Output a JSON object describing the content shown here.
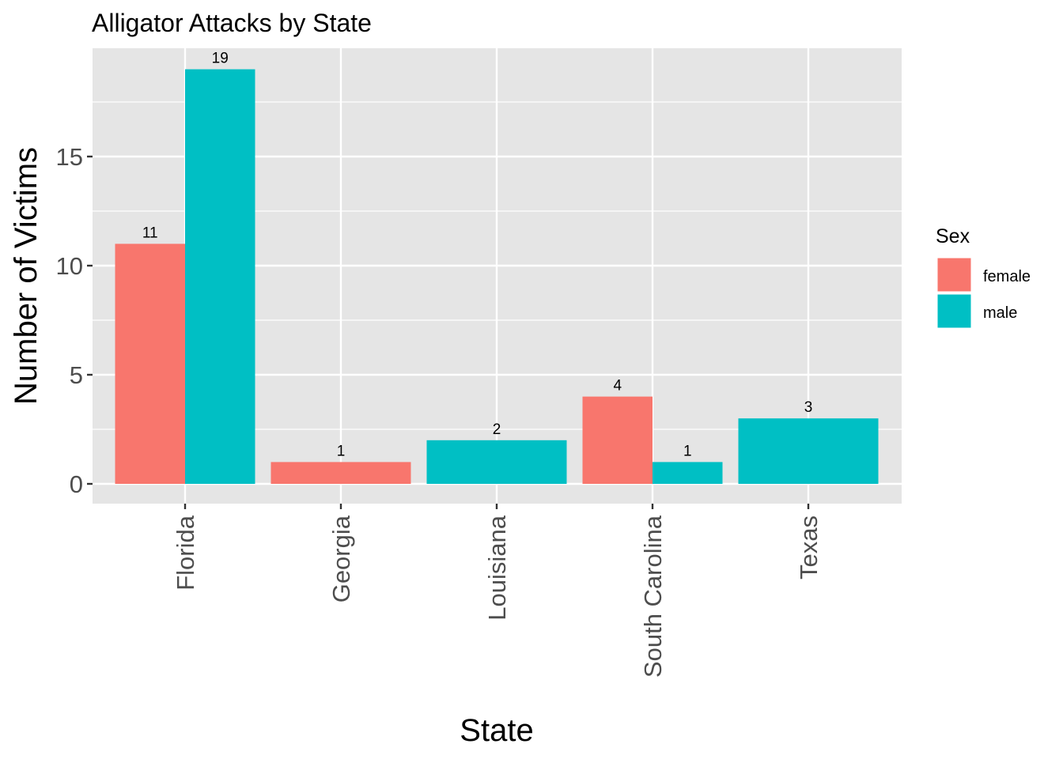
{
  "chart_data": {
    "type": "bar",
    "title": "Alligator Attacks by State",
    "xlabel": "State",
    "ylabel": "Number of Victims",
    "categories": [
      "Florida",
      "Georgia",
      "Louisiana",
      "South Carolina",
      "Texas"
    ],
    "series": [
      {
        "name": "female",
        "color": "#F8766D",
        "values": [
          11,
          1,
          0,
          4,
          0
        ]
      },
      {
        "name": "male",
        "color": "#00BFC4",
        "values": [
          19,
          0,
          2,
          1,
          3
        ]
      }
    ],
    "bars": [
      {
        "category": "Florida",
        "sex": "female",
        "value": 11
      },
      {
        "category": "Florida",
        "sex": "male",
        "value": 19
      },
      {
        "category": "Georgia",
        "sex": "female",
        "value": 1
      },
      {
        "category": "Louisiana",
        "sex": "male",
        "value": 2
      },
      {
        "category": "South Carolina",
        "sex": "female",
        "value": 4
      },
      {
        "category": "South Carolina",
        "sex": "male",
        "value": 1
      },
      {
        "category": "Texas",
        "sex": "male",
        "value": 3
      }
    ],
    "yticks": [
      0,
      5,
      10,
      15
    ],
    "ylim": [
      -0.9,
      19.9
    ],
    "grid": true,
    "legend": {
      "title": "Sex",
      "position": "right",
      "items": [
        "female",
        "male"
      ]
    },
    "panel_color": "#E5E5E5",
    "grid_color": "#FFFFFF"
  }
}
